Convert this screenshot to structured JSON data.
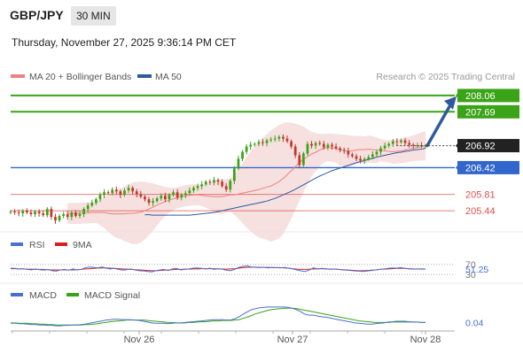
{
  "header": {
    "pair": "GBP/JPY",
    "timeframe": "30 MIN",
    "datetime": "Thursday, November 27, 2025 9:36:14 PM CET"
  },
  "legend": {
    "ma20": "MA 20 + Bollinger Bands",
    "ma50": "MA 50",
    "credit": "Research © 2025 Trading Central"
  },
  "colors": {
    "up": "#3aa317",
    "down": "#c0392b",
    "pivot": "#3366cc",
    "support": "#d9534f",
    "resistance": "#3aa317",
    "arrow": "#2f5a9e",
    "ma20": "#f08080",
    "ma50": "#2f5a9e",
    "band": "#f6dada"
  },
  "chart_data": [
    {
      "type": "line",
      "name": "price",
      "x_ticks": [
        "Nov 26",
        "Nov 27",
        "Nov 28"
      ],
      "levels": [
        {
          "value": "208.06",
          "kind": "resistance"
        },
        {
          "value": "207.69",
          "kind": "resistance"
        },
        {
          "value": "206.92",
          "kind": "last"
        },
        {
          "value": "206.42",
          "kind": "pivot"
        },
        {
          "value": "205.81",
          "kind": "support"
        },
        {
          "value": "205.44",
          "kind": "support"
        }
      ],
      "close": [
        205.42,
        205.4,
        205.38,
        205.44,
        205.4,
        205.36,
        205.42,
        205.38,
        205.34,
        205.48,
        205.3,
        205.22,
        205.32,
        205.36,
        205.3,
        205.4,
        205.32,
        205.36,
        205.48,
        205.56,
        205.62,
        205.7,
        205.8,
        205.86,
        205.84,
        205.92,
        205.88,
        205.8,
        205.9,
        205.96,
        205.88,
        205.82,
        205.76,
        205.7,
        205.62,
        205.66,
        205.72,
        205.78,
        205.7,
        205.8,
        205.86,
        205.74,
        205.8,
        205.84,
        205.9,
        205.96,
        206.0,
        206.04,
        206.1,
        206.08,
        206.14,
        206.1,
        206.0,
        205.92,
        206.12,
        206.4,
        206.62,
        206.78,
        206.9,
        206.94,
        206.96,
        207.0,
        206.98,
        207.04,
        207.06,
        207.08,
        207.12,
        207.08,
        207.02,
        206.9,
        206.7,
        206.48,
        206.74,
        206.96,
        206.92,
        206.98,
        206.96,
        206.88,
        206.94,
        206.9,
        206.86,
        206.82,
        206.8,
        206.72,
        206.68,
        206.62,
        206.58,
        206.62,
        206.66,
        206.72,
        206.78,
        206.86,
        206.92,
        206.96,
        207.02,
        207.0,
        207.04,
        206.98,
        206.94,
        206.92,
        206.93,
        206.92,
        206.92
      ],
      "ma20": [
        205.38,
        205.38,
        205.38,
        205.38,
        205.39,
        205.39,
        205.4,
        205.4,
        205.4,
        205.4,
        205.38,
        205.37,
        205.37,
        205.37,
        205.37,
        205.38,
        205.38,
        205.39,
        205.41,
        205.44,
        205.48,
        205.52,
        205.57,
        205.61,
        205.65,
        205.68,
        205.71,
        205.73,
        205.76,
        205.78,
        205.79,
        205.8,
        205.8,
        205.79,
        205.78,
        205.77,
        205.76,
        205.76,
        205.76,
        205.78,
        205.8,
        205.8,
        205.82,
        205.84,
        205.86,
        205.88,
        205.9,
        205.92,
        205.95,
        205.98,
        206.0,
        206.05,
        206.1,
        206.17,
        206.26,
        206.35,
        206.44,
        206.53,
        206.61,
        206.67,
        206.73,
        206.77,
        206.82,
        206.86,
        206.88,
        206.87,
        206.86,
        206.82,
        206.81,
        206.79,
        206.8,
        206.82,
        206.83,
        206.83,
        206.84,
        206.83,
        206.82,
        206.82,
        206.8,
        206.79,
        206.78,
        206.79,
        206.8,
        206.82,
        206.84,
        206.86,
        206.88,
        206.9,
        206.92
      ],
      "ma50": [
        205.35,
        205.35,
        205.34,
        205.34,
        205.34,
        205.34,
        205.34,
        205.34,
        205.34,
        205.34,
        205.34,
        205.34,
        205.35,
        205.36,
        205.37,
        205.38,
        205.39,
        205.4,
        205.42,
        205.44,
        205.46,
        205.48,
        205.5,
        205.52,
        205.54,
        205.56,
        205.58,
        205.6,
        205.62,
        205.64,
        205.66,
        205.69,
        205.72,
        205.76,
        205.8,
        205.84,
        205.88,
        205.93,
        205.98,
        206.03,
        206.08,
        206.13,
        206.18,
        206.23,
        206.27,
        206.31,
        206.35,
        206.38,
        206.41,
        206.44,
        206.47,
        206.5,
        206.53,
        206.56,
        206.58,
        206.61,
        206.63,
        206.66,
        206.68,
        206.7,
        206.72,
        206.74,
        206.76,
        206.77,
        206.79,
        206.8,
        206.82,
        206.83,
        206.84,
        206.86
      ],
      "ylim": [
        205.1,
        208.3
      ]
    },
    {
      "type": "line",
      "name": "RSI",
      "legend": [
        "RSI",
        "9MA"
      ],
      "ticks": [
        "70",
        "30"
      ],
      "value_label": "51.25",
      "rsi": [
        55,
        54,
        52,
        53,
        50,
        48,
        52,
        49,
        47,
        50,
        45,
        43,
        48,
        50,
        47,
        52,
        48,
        50,
        56,
        60,
        58,
        56,
        60,
        55,
        52,
        54,
        50,
        47,
        49,
        52,
        48,
        45,
        44,
        42,
        40,
        45,
        48,
        50,
        46,
        52,
        54,
        48,
        50,
        52,
        55,
        56,
        54,
        52,
        55,
        50,
        53,
        51,
        47,
        45,
        50,
        58,
        62,
        64,
        60,
        58,
        57,
        59,
        56,
        58,
        57,
        56,
        58,
        55,
        52,
        48,
        44,
        42,
        48,
        56,
        52,
        54,
        53,
        50,
        52,
        50,
        48,
        47,
        46,
        44,
        43,
        42,
        44,
        46,
        48,
        50,
        52,
        54,
        56,
        55,
        57,
        54,
        52,
        51,
        52,
        51,
        51.25
      ],
      "ma9": [
        53,
        53,
        52,
        52,
        51,
        51,
        50,
        50,
        50,
        49,
        48,
        48,
        48,
        48,
        48,
        48,
        49,
        50,
        52,
        53,
        54,
        55,
        56,
        56,
        55,
        54,
        53,
        52,
        51,
        50,
        49,
        48,
        47,
        46,
        45,
        45,
        46,
        47,
        48,
        49,
        50,
        50,
        51,
        51,
        52,
        52,
        53,
        53,
        53,
        53,
        52,
        52,
        51,
        52,
        53,
        55,
        57,
        58,
        59,
        59,
        58,
        58,
        58,
        57,
        57,
        57,
        56,
        55,
        53,
        51,
        50,
        50,
        51,
        52,
        52,
        53,
        52,
        51,
        51,
        50,
        49,
        48,
        47,
        46,
        45,
        45,
        46,
        47,
        48,
        50,
        51,
        52,
        53,
        54,
        54,
        54,
        53,
        52,
        52,
        52,
        51.5
      ]
    },
    {
      "type": "line",
      "name": "MACD",
      "legend": [
        "MACD",
        "MACD Signal"
      ],
      "value_label": "0.04",
      "macd": [
        0.02,
        0.02,
        0.01,
        0.01,
        0.0,
        -0.01,
        -0.01,
        -0.02,
        -0.02,
        -0.03,
        -0.03,
        -0.04,
        -0.04,
        -0.03,
        -0.03,
        -0.02,
        -0.02,
        -0.01,
        0.0,
        0.02,
        0.04,
        0.06,
        0.08,
        0.1,
        0.11,
        0.12,
        0.12,
        0.11,
        0.11,
        0.11,
        0.1,
        0.09,
        0.07,
        0.05,
        0.03,
        0.02,
        0.02,
        0.02,
        0.01,
        0.02,
        0.03,
        0.03,
        0.04,
        0.05,
        0.06,
        0.07,
        0.08,
        0.09,
        0.1,
        0.11,
        0.11,
        0.11,
        0.1,
        0.1,
        0.13,
        0.18,
        0.24,
        0.3,
        0.35,
        0.38,
        0.4,
        0.41,
        0.42,
        0.42,
        0.42,
        0.42,
        0.42,
        0.41,
        0.39,
        0.35,
        0.3,
        0.24,
        0.22,
        0.22,
        0.2,
        0.18,
        0.17,
        0.15,
        0.13,
        0.11,
        0.09,
        0.07,
        0.05,
        0.03,
        0.02,
        0.01,
        0.0,
        0.0,
        0.01,
        0.02,
        0.03,
        0.05,
        0.06,
        0.07,
        0.07,
        0.07,
        0.06,
        0.05,
        0.05,
        0.04,
        0.04
      ],
      "signal": [
        0.03,
        0.03,
        0.02,
        0.02,
        0.02,
        0.01,
        0.01,
        0.0,
        0.0,
        -0.01,
        -0.01,
        -0.02,
        -0.02,
        -0.02,
        -0.02,
        -0.02,
        -0.02,
        -0.02,
        -0.01,
        -0.01,
        0.0,
        0.01,
        0.03,
        0.04,
        0.06,
        0.07,
        0.08,
        0.09,
        0.1,
        0.1,
        0.1,
        0.1,
        0.1,
        0.09,
        0.08,
        0.07,
        0.06,
        0.05,
        0.04,
        0.04,
        0.03,
        0.03,
        0.03,
        0.04,
        0.04,
        0.05,
        0.06,
        0.06,
        0.07,
        0.08,
        0.08,
        0.09,
        0.09,
        0.09,
        0.1,
        0.11,
        0.14,
        0.17,
        0.21,
        0.25,
        0.28,
        0.31,
        0.34,
        0.36,
        0.37,
        0.38,
        0.39,
        0.39,
        0.39,
        0.38,
        0.36,
        0.34,
        0.32,
        0.3,
        0.28,
        0.26,
        0.24,
        0.22,
        0.2,
        0.18,
        0.16,
        0.14,
        0.12,
        0.1,
        0.08,
        0.07,
        0.06,
        0.05,
        0.04,
        0.04,
        0.04,
        0.04,
        0.05,
        0.05,
        0.05,
        0.05,
        0.05,
        0.05,
        0.05,
        0.04,
        0.04
      ]
    }
  ]
}
